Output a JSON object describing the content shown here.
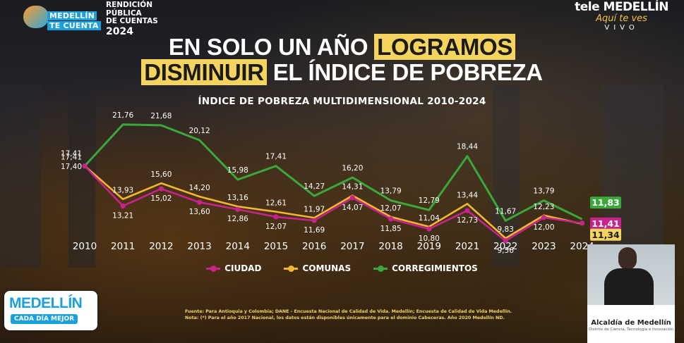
{
  "branding": {
    "logo_line1": "MEDELLÍN",
    "logo_line2": "TE CUENTA",
    "rendicion": [
      "RENDICIÓN",
      "PÚBLICA",
      "DE CUENTAS",
      "2024"
    ],
    "tele_line1": "tele MEDELLÍN",
    "tele_line2": "Aquí te ves",
    "tele_line3": "VIVO"
  },
  "headline": {
    "line1_plain": "EN SOLO UN AÑO ",
    "line1_highlight": "LOGRAMOS",
    "line2_highlight": "DISMINUIR",
    "line2_plain": " EL ÍNDICE DE POBREZA"
  },
  "chart_data": {
    "type": "line",
    "title": "ÍNDICE DE POBREZA MULTIDIMENSIONAL 2010-2024",
    "categories": [
      "2010",
      "2011",
      "2012",
      "2013",
      "2014",
      "2015",
      "2016",
      "2017",
      "2018",
      "2019",
      "2021",
      "2022",
      "2023",
      "2024"
    ],
    "ylim": [
      8,
      23
    ],
    "grid": false,
    "legend_position": "bottom",
    "series": [
      {
        "name": "CIUDAD",
        "color": "#c8238a",
        "values": [
          17.4,
          13.21,
          15.02,
          13.6,
          12.86,
          12.07,
          11.69,
          14.07,
          11.85,
          10.8,
          12.73,
          9.56,
          12.0,
          11.41
        ],
        "labels": [
          "17,40",
          "13,21",
          "15,02",
          "13,60",
          "12,86",
          "12,07",
          "11,69",
          "14,07",
          "11,85",
          "10,80",
          "12,73",
          "9,56",
          "12,00",
          "11,41"
        ]
      },
      {
        "name": "COMUNAS",
        "color": "#f2b632",
        "values": [
          17.41,
          13.93,
          15.6,
          14.2,
          13.16,
          12.61,
          11.97,
          14.31,
          12.07,
          11.04,
          13.44,
          9.83,
          12.23,
          11.34
        ],
        "labels": [
          "17,41",
          "13,93",
          "15,60",
          "14,20",
          "13,16",
          "12,61",
          "11,97",
          "14,31",
          "12,07",
          "11,04",
          "13,44",
          "9,83",
          "12,23",
          "11,34"
        ]
      },
      {
        "name": "CORREGIMIENTOS",
        "color": "#3aa83a",
        "values": [
          17.41,
          21.76,
          21.68,
          20.12,
          15.98,
          17.41,
          14.27,
          16.2,
          13.79,
          12.79,
          18.44,
          11.67,
          13.79,
          11.83
        ],
        "labels": [
          "17,41",
          "21,76",
          "21,68",
          "20,12",
          "15,98",
          "17,41",
          "14,27",
          "16,20",
          "13,79",
          "12,79",
          "18,44",
          "11,67",
          "13,79",
          "11,83"
        ]
      }
    ]
  },
  "source": {
    "line1": "Fuente: Para Antioquia y Colombia; DANE - Encuesta Nacional de Calidad de Vida. Medellín; Encuesta de Calidad de Vida Medellín.",
    "line2": "Nota: (*) Para el año 2017 Nacional, los datos están disponibles únicamente para el dominio Cabeceras. Año 2020 Medellín ND."
  },
  "badge": {
    "line1": "MEDELLÍN",
    "line2": "CADA DÍA MEJOR"
  },
  "signer": {
    "line1": "Alcaldía de Medellín",
    "line2": "Distrito de Ciencia, Tecnología e Innovación"
  }
}
